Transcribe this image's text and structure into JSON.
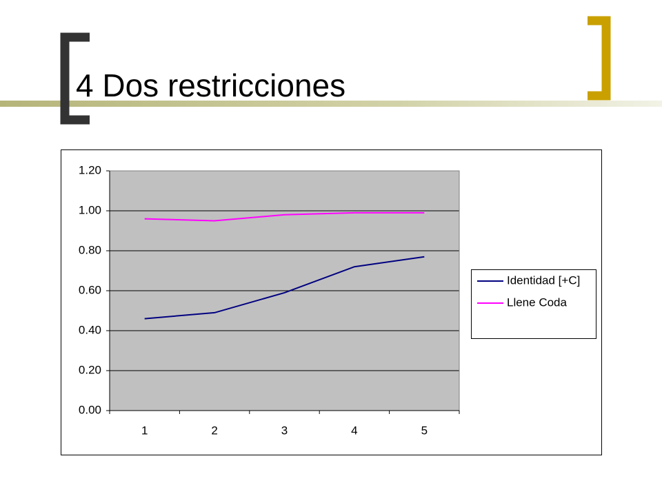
{
  "title": "4 Dos restricciones",
  "chart_data": {
    "type": "line",
    "categories": [
      "1",
      "2",
      "3",
      "4",
      "5"
    ],
    "series": [
      {
        "name": "Identidad [+C]",
        "color": "#000080",
        "values": [
          0.46,
          0.49,
          0.59,
          0.72,
          0.77
        ]
      },
      {
        "name": "Llene Coda",
        "color": "#ff00ff",
        "values": [
          0.96,
          0.95,
          0.98,
          0.99,
          0.99
        ]
      }
    ],
    "ylim": [
      0,
      1.2
    ],
    "yticks": [
      {
        "value": 0,
        "label": "0.00"
      },
      {
        "value": 0.2,
        "label": "0.20"
      },
      {
        "value": 0.4,
        "label": "0.40"
      },
      {
        "value": 0.6,
        "label": "0.60"
      },
      {
        "value": 0.8,
        "label": "0.80"
      },
      {
        "value": 1,
        "label": "1.00"
      },
      {
        "value": 1.2,
        "label": "1.20"
      }
    ],
    "grid": true,
    "plot_background": "#c0c0c0",
    "legend": "right"
  }
}
